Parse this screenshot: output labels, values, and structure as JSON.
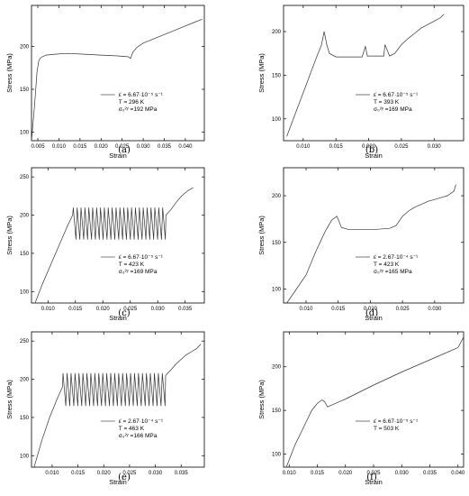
{
  "chart_data": [
    {
      "panel": "(a)",
      "type": "line",
      "xlabel": "Strain",
      "ylabel": "Stress (MPa)",
      "xlim": [
        0.0035,
        0.0445
      ],
      "ylim": [
        90,
        248
      ],
      "xticks": [
        0.005,
        0.01,
        0.015,
        0.02,
        0.025,
        0.03,
        0.035,
        0.04
      ],
      "xtick_labels": [
        "0.005",
        "0.010",
        "0.015",
        "0.020",
        "0.025",
        "0.030",
        "0.035",
        "0.040"
      ],
      "yticks": [
        100,
        150,
        200
      ],
      "ytick_labels": [
        "100",
        "150",
        "200"
      ],
      "legend": {
        "rate": "ε̇ = 6.67·10⁻⁵ s⁻¹",
        "temp": "T = 296 K",
        "yield": "σ₀²ʸ =192 MPa"
      },
      "series": [
        {
          "x": [
            0.0035,
            0.0042,
            0.0048,
            0.0052,
            0.0055,
            0.006,
            0.007,
            0.009,
            0.012,
            0.016,
            0.02,
            0.024,
            0.0265,
            0.027,
            0.0275,
            0.0285,
            0.03,
            0.033,
            0.036,
            0.039,
            0.042,
            0.044
          ],
          "y": [
            90,
            130,
            170,
            183,
            186,
            188,
            190,
            191,
            192,
            191,
            190,
            189,
            188,
            186,
            193,
            199,
            204,
            210,
            216,
            222,
            228,
            232
          ]
        }
      ]
    },
    {
      "panel": "(b)",
      "type": "line",
      "xlabel": "Strain",
      "ylabel": "Stress (MPa)",
      "xlim": [
        0.007,
        0.0345
      ],
      "ylim": [
        75,
        230
      ],
      "xticks": [
        0.01,
        0.015,
        0.02,
        0.025,
        0.03
      ],
      "xtick_labels": [
        "0.010",
        "0.015",
        "0.020",
        "0.025",
        "0.030"
      ],
      "yticks": [
        100,
        150,
        200
      ],
      "ytick_labels": [
        "100",
        "150",
        "200"
      ],
      "legend": {
        "rate": "ε̇ = 6.67·10⁻⁵ s⁻¹",
        "temp": "T = 393 K",
        "yield": "σ₀²ʸ =169 MPa"
      },
      "series": [
        {
          "x": [
            0.0075,
            0.009,
            0.0105,
            0.012,
            0.0128,
            0.0132,
            0.0136,
            0.014,
            0.015,
            0.017,
            0.019,
            0.0195,
            0.0198,
            0.0202,
            0.0215,
            0.0223,
            0.0225,
            0.0232,
            0.024,
            0.025,
            0.026,
            0.027,
            0.028,
            0.029,
            0.03,
            0.031,
            0.0315
          ],
          "y": [
            80,
            110,
            140,
            170,
            185,
            200,
            185,
            175,
            171,
            171,
            171,
            183,
            172,
            172,
            172,
            172,
            185,
            172,
            175,
            185,
            192,
            198,
            204,
            208,
            212,
            216,
            220
          ]
        }
      ]
    },
    {
      "panel": "(c)",
      "type": "line",
      "xlabel": "Strain",
      "ylabel": "Stress (MPa)",
      "xlim": [
        0.007,
        0.0385
      ],
      "ylim": [
        85,
        262
      ],
      "xticks": [
        0.01,
        0.015,
        0.02,
        0.025,
        0.03,
        0.035
      ],
      "xtick_labels": [
        "0.010",
        "0.015",
        "0.020",
        "0.025",
        "0.030",
        "0.035"
      ],
      "yticks": [
        100,
        150,
        200,
        250
      ],
      "ytick_labels": [
        "100",
        "150",
        "200",
        "250"
      ],
      "legend": {
        "rate": "ε̇ = 6.67·10⁻⁵ s⁻¹",
        "temp": "T = 423 K",
        "yield": "σ₀²ʸ =169 MPa"
      },
      "serration": {
        "start": 0.0145,
        "end": 0.0315,
        "low": 168,
        "high": 210,
        "count": 24
      },
      "series": [
        {
          "x": [
            0.0075,
            0.009,
            0.0105,
            0.012,
            0.0135,
            0.0145,
            0.0315,
            0.0325,
            0.0335,
            0.0345,
            0.0355,
            0.0365
          ],
          "y": [
            82,
            110,
            135,
            160,
            185,
            200,
            200,
            208,
            218,
            226,
            232,
            236
          ]
        }
      ]
    },
    {
      "panel": "(d)",
      "type": "line",
      "xlabel": "Strain",
      "ylabel": "Stress (MPa)",
      "xlim": [
        0.0065,
        0.0345
      ],
      "ylim": [
        85,
        230
      ],
      "xticks": [
        0.01,
        0.015,
        0.02,
        0.025,
        0.03
      ],
      "xtick_labels": [
        "0.010",
        "0.015",
        "0.020",
        "0.025",
        "0.030"
      ],
      "yticks": [
        100,
        150,
        200
      ],
      "ytick_labels": [
        "100",
        "150",
        "200"
      ],
      "legend": {
        "rate": "ε̇ = 2.67·10⁻⁴ s⁻¹",
        "temp": "T = 423 K",
        "yield": "σ₀²ʸ =165 MPa"
      },
      "series": [
        {
          "x": [
            0.007,
            0.0085,
            0.01,
            0.0115,
            0.013,
            0.014,
            0.0148,
            0.0155,
            0.0165,
            0.018,
            0.021,
            0.023,
            0.024,
            0.025,
            0.026,
            0.027,
            0.028,
            0.029,
            0.03,
            0.031,
            0.032,
            0.033,
            0.0333
          ],
          "y": [
            85,
            100,
            115,
            140,
            162,
            174,
            178,
            166,
            164,
            164,
            164,
            165,
            168,
            178,
            184,
            188,
            191,
            194,
            196,
            198,
            200,
            205,
            212
          ]
        }
      ]
    },
    {
      "panel": "(e)",
      "type": "line",
      "xlabel": "Strain",
      "ylabel": "Stress (MPa)",
      "xlim": [
        0.006,
        0.0395
      ],
      "ylim": [
        85,
        262
      ],
      "xticks": [
        0.01,
        0.015,
        0.02,
        0.025,
        0.03,
        0.035
      ],
      "xtick_labels": [
        "0.010",
        "0.015",
        "0.020",
        "0.025",
        "0.030",
        "0.035"
      ],
      "yticks": [
        100,
        150,
        200,
        250
      ],
      "ytick_labels": [
        "100",
        "150",
        "200",
        "250"
      ],
      "legend": {
        "rate": "ε̇ = 2.67·10⁻⁴ s⁻¹",
        "temp": "T = 463 K",
        "yield": "σ₀²ʸ =166 MPa"
      },
      "serration": {
        "start": 0.012,
        "end": 0.032,
        "low": 165,
        "high": 208,
        "count": 26
      },
      "series": [
        {
          "x": [
            0.0065,
            0.008,
            0.0095,
            0.011,
            0.012,
            0.032,
            0.033,
            0.034,
            0.035,
            0.036,
            0.037,
            0.038,
            0.0388
          ],
          "y": [
            85,
            120,
            150,
            175,
            190,
            205,
            212,
            220,
            226,
            232,
            236,
            240,
            246
          ]
        }
      ]
    },
    {
      "panel": "(f)",
      "type": "line",
      "xlabel": "Strain",
      "ylabel": "Stress (MPa)",
      "xlim": [
        0.009,
        0.041
      ],
      "ylim": [
        85,
        240
      ],
      "xticks": [
        0.01,
        0.015,
        0.02,
        0.025,
        0.03,
        0.035,
        0.04
      ],
      "xtick_labels": [
        "0.010",
        "0.015",
        "0.020",
        "0.025",
        "0.030",
        "0.035",
        "0.040"
      ],
      "yticks": [
        100,
        150,
        200
      ],
      "ytick_labels": [
        "100",
        "150",
        "200"
      ],
      "legend": {
        "rate": "ε̇ = 6.67·10⁻⁵ s⁻¹",
        "temp": "T = 503 K",
        "yield": ""
      },
      "series": [
        {
          "x": [
            0.0095,
            0.011,
            0.0125,
            0.014,
            0.015,
            0.0158,
            0.0163,
            0.0168,
            0.0175,
            0.02,
            0.025,
            0.03,
            0.035,
            0.04,
            0.041
          ],
          "y": [
            85,
            110,
            130,
            150,
            158,
            162,
            160,
            154,
            156,
            163,
            179,
            194,
            208,
            222,
            234
          ]
        }
      ]
    }
  ]
}
